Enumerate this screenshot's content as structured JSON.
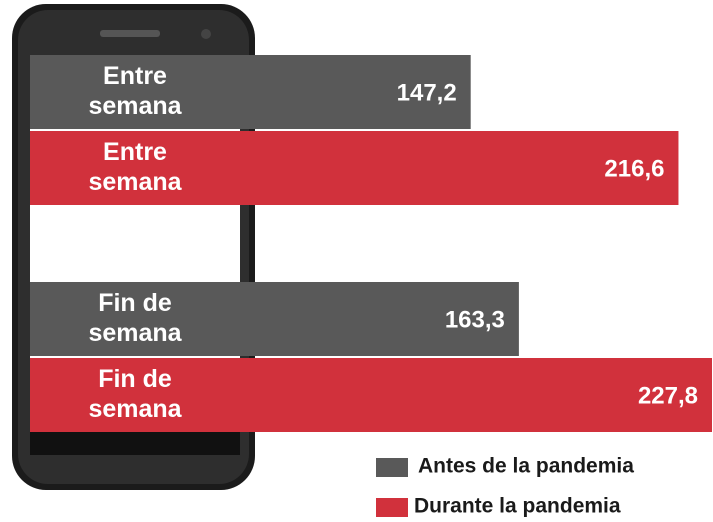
{
  "chart_data": {
    "type": "bar",
    "orientation": "horizontal",
    "categories": [
      "Entre semana",
      "Fin de semana"
    ],
    "series": [
      {
        "name": "Antes de la pandemia",
        "color": "#595959",
        "values": [
          147.2,
          163.3
        ],
        "value_labels": [
          "147,2",
          "163,3"
        ]
      },
      {
        "name": "Durante la pandemia",
        "color": "#d1313c",
        "values": [
          216.6,
          227.8
        ],
        "value_labels": [
          "216,6",
          "227,8"
        ]
      }
    ]
  }
}
